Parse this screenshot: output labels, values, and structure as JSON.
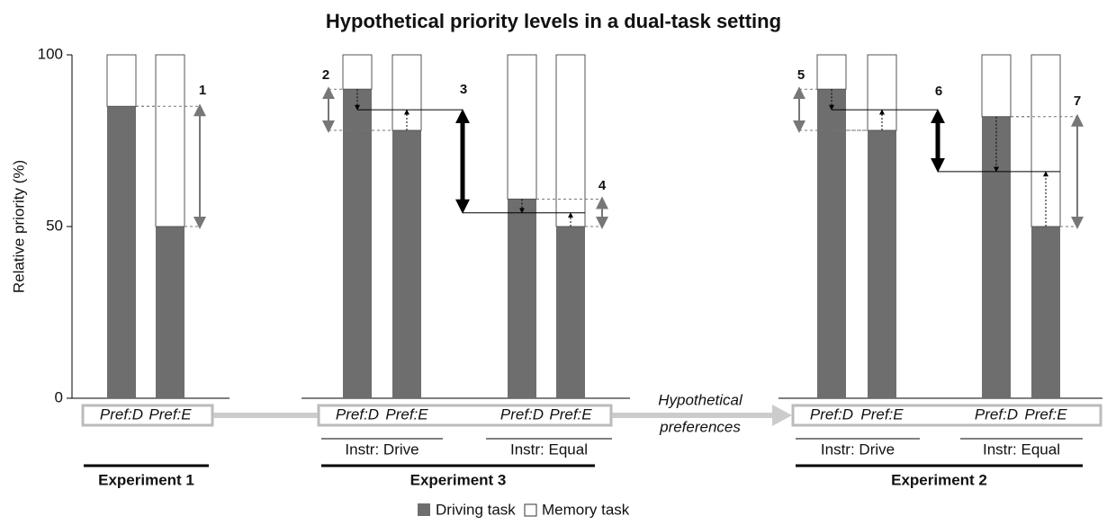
{
  "chart_data": {
    "type": "bar",
    "stacked": true,
    "title": "Hypothetical priority levels in a dual-task setting",
    "y_label": "Relative priority (%)",
    "ylim": [
      0,
      100
    ],
    "yticks": [
      0,
      50,
      100
    ],
    "categories": [
      "Pref:D",
      "Pref:E",
      "Pref:D",
      "Pref:E",
      "Pref:D",
      "Pref:E",
      "Pref:D",
      "Pref:E",
      "Pref:D",
      "Pref:E"
    ],
    "series": [
      {
        "name": "Driving task",
        "color": "#6e6e6e",
        "values": [
          85,
          50,
          90,
          78,
          58,
          50,
          90,
          78,
          82,
          50
        ]
      },
      {
        "name": "Memory task",
        "color": "#ffffff",
        "values": [
          15,
          50,
          10,
          22,
          42,
          50,
          10,
          22,
          18,
          50
        ]
      }
    ],
    "groups": [
      "Instr: Drive",
      "Instr: Equal",
      "Instr: Drive",
      "Instr: Equal"
    ],
    "experiments": [
      "Experiment 1",
      "Experiment 3",
      "Experiment 2"
    ],
    "connector_label": [
      "Hypothetical",
      "preferences"
    ],
    "annotations": [
      "1",
      "2",
      "3",
      "4",
      "5",
      "6",
      "7"
    ]
  }
}
